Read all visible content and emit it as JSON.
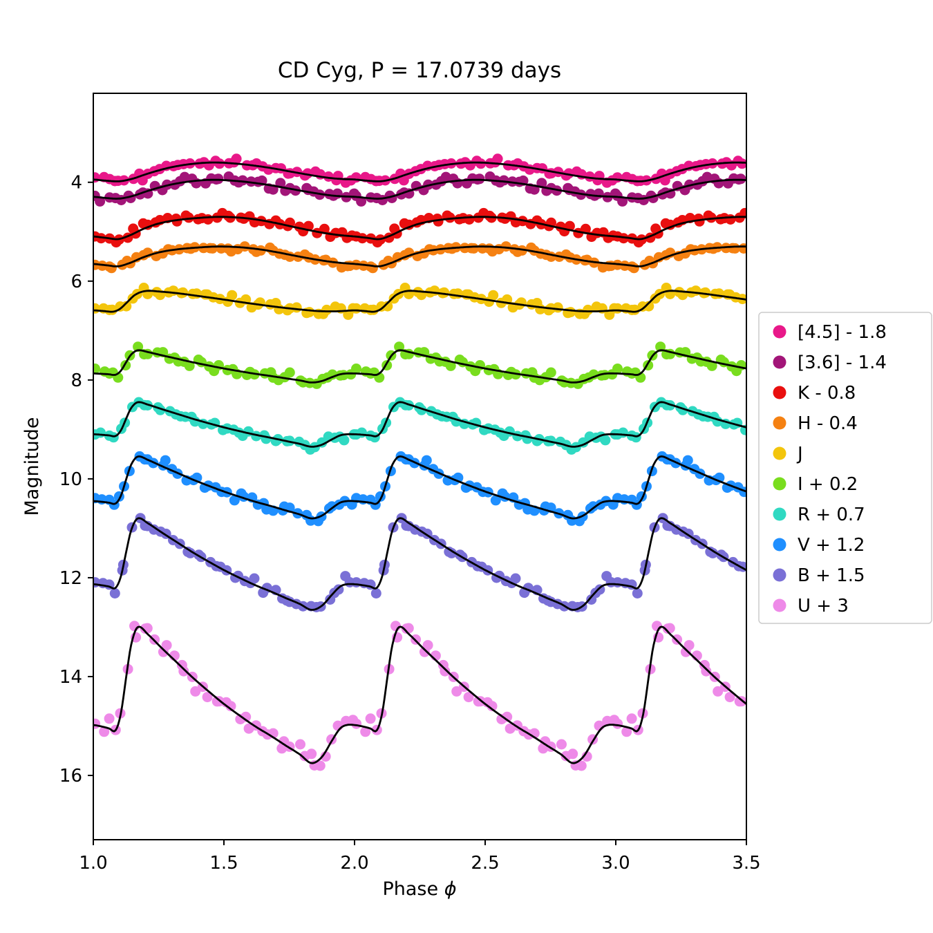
{
  "figure": {
    "xlabel_prefix": "Phase ",
    "xlabel_symbol": "ϕ"
  },
  "chart_data": {
    "type": "scatter",
    "title": "CD Cyg, P = 17.0739 days",
    "xlabel": "Phase ϕ",
    "ylabel": "Magnitude",
    "xlim": [
      1.0,
      3.5
    ],
    "ylim_top": 2.2,
    "ylim_bottom": 17.3,
    "y_axis_inverted": true,
    "grid": false,
    "fit_line_color": "#000000",
    "legend_position": "outside-right",
    "xticks": [
      {
        "value": 1.0,
        "label": "1.0"
      },
      {
        "value": 1.5,
        "label": "1.5"
      },
      {
        "value": 2.0,
        "label": "2.0"
      },
      {
        "value": 2.5,
        "label": "2.5"
      },
      {
        "value": 3.0,
        "label": "3.0"
      },
      {
        "value": 3.5,
        "label": "3.5"
      }
    ],
    "yticks": [
      {
        "value": 4,
        "label": "4"
      },
      {
        "value": 6,
        "label": "6"
      },
      {
        "value": 8,
        "label": "8"
      },
      {
        "value": 10,
        "label": "10"
      },
      {
        "value": 12,
        "label": "12"
      },
      {
        "value": 14,
        "label": "14"
      },
      {
        "value": 16,
        "label": "16"
      }
    ],
    "points_per_cycle": 44,
    "cycles": [
      0,
      1,
      2
    ],
    "templates": {
      "opt": [
        [
          0.0,
          0.72
        ],
        [
          0.03,
          0.73
        ],
        [
          0.06,
          0.745
        ],
        [
          0.085,
          0.76
        ],
        [
          0.105,
          0.64
        ],
        [
          0.125,
          0.38
        ],
        [
          0.145,
          0.13
        ],
        [
          0.17,
          0.0
        ],
        [
          0.21,
          0.055
        ],
        [
          0.26,
          0.15
        ],
        [
          0.32,
          0.26
        ],
        [
          0.38,
          0.37
        ],
        [
          0.44,
          0.47
        ],
        [
          0.5,
          0.565
        ],
        [
          0.56,
          0.65
        ],
        [
          0.62,
          0.73
        ],
        [
          0.68,
          0.8
        ],
        [
          0.74,
          0.875
        ],
        [
          0.79,
          0.935
        ],
        [
          0.835,
          1.0
        ],
        [
          0.875,
          0.955
        ],
        [
          0.915,
          0.83
        ],
        [
          0.945,
          0.745
        ],
        [
          0.97,
          0.72
        ],
        [
          1.0,
          0.72
        ]
      ],
      "j": [
        [
          0.0,
          0.87
        ],
        [
          0.04,
          0.9
        ],
        [
          0.075,
          0.93
        ],
        [
          0.1,
          0.82
        ],
        [
          0.13,
          0.5
        ],
        [
          0.16,
          0.17
        ],
        [
          0.2,
          0.0
        ],
        [
          0.26,
          0.03
        ],
        [
          0.33,
          0.11
        ],
        [
          0.4,
          0.22
        ],
        [
          0.48,
          0.35
        ],
        [
          0.56,
          0.49
        ],
        [
          0.64,
          0.62
        ],
        [
          0.72,
          0.74
        ],
        [
          0.8,
          0.84
        ],
        [
          0.86,
          0.9
        ],
        [
          0.92,
          0.915
        ],
        [
          0.96,
          0.895
        ],
        [
          1.0,
          0.87
        ]
      ],
      "hk": [
        [
          0.0,
          0.88
        ],
        [
          0.05,
          0.945
        ],
        [
          0.095,
          1.0
        ],
        [
          0.14,
          0.83
        ],
        [
          0.19,
          0.55
        ],
        [
          0.25,
          0.3
        ],
        [
          0.32,
          0.145
        ],
        [
          0.4,
          0.05
        ],
        [
          0.48,
          0.0
        ],
        [
          0.56,
          0.035
        ],
        [
          0.63,
          0.13
        ],
        [
          0.7,
          0.28
        ],
        [
          0.77,
          0.46
        ],
        [
          0.84,
          0.63
        ],
        [
          0.9,
          0.755
        ],
        [
          0.95,
          0.83
        ],
        [
          1.0,
          0.88
        ]
      ],
      "ir": [
        [
          0.0,
          0.86
        ],
        [
          0.05,
          0.92
        ],
        [
          0.1,
          0.95
        ],
        [
          0.15,
          0.82
        ],
        [
          0.2,
          0.6
        ],
        [
          0.25,
          0.4
        ],
        [
          0.3,
          0.235
        ],
        [
          0.36,
          0.1
        ],
        [
          0.42,
          0.02
        ],
        [
          0.47,
          0.0
        ],
        [
          0.53,
          0.04
        ],
        [
          0.6,
          0.13
        ],
        [
          0.68,
          0.28
        ],
        [
          0.76,
          0.47
        ],
        [
          0.84,
          0.655
        ],
        [
          0.91,
          0.79
        ],
        [
          0.96,
          0.84
        ],
        [
          1.0,
          0.86
        ]
      ]
    },
    "series": [
      {
        "label": "[4.5] - 1.8",
        "color": "#e81889",
        "template": "ir",
        "bright": 3.6,
        "amplitude": 0.4,
        "noise": 0.045,
        "seed": 11
      },
      {
        "label": "[3.6] - 1.4",
        "color": "#a21578",
        "template": "ir",
        "bright": 3.95,
        "amplitude": 0.4,
        "noise": 0.04,
        "seed": 22
      },
      {
        "label": "K - 0.8",
        "color": "#e90f0f",
        "template": "hk",
        "bright": 4.7,
        "amplitude": 0.45,
        "noise": 0.05,
        "seed": 33
      },
      {
        "label": "H - 0.4",
        "color": "#f58112",
        "template": "hk",
        "bright": 5.3,
        "amplitude": 0.4,
        "noise": 0.04,
        "seed": 44
      },
      {
        "label": "J",
        "color": "#f3c50c",
        "template": "j",
        "bright": 6.2,
        "amplitude": 0.45,
        "noise": 0.045,
        "seed": 55
      },
      {
        "label": "I + 0.2",
        "color": "#79dd1e",
        "template": "opt",
        "bright": 7.4,
        "amplitude": 0.65,
        "noise": 0.045,
        "seed": 66
      },
      {
        "label": "R + 0.7",
        "color": "#30d9c2",
        "template": "opt",
        "bright": 8.45,
        "amplitude": 0.9,
        "noise": 0.04,
        "seed": 77
      },
      {
        "label": "V + 1.2",
        "color": "#1f8fff",
        "template": "opt",
        "bright": 9.55,
        "amplitude": 1.25,
        "noise": 0.05,
        "seed": 88
      },
      {
        "label": "B + 1.5",
        "color": "#7a70d6",
        "template": "opt",
        "bright": 10.8,
        "amplitude": 1.85,
        "noise": 0.055,
        "seed": 99
      },
      {
        "label": "U + 3",
        "color": "#ee8ae8",
        "template": "opt",
        "bright": 13.0,
        "amplitude": 2.75,
        "noise": 0.1,
        "seed": 110
      }
    ]
  }
}
